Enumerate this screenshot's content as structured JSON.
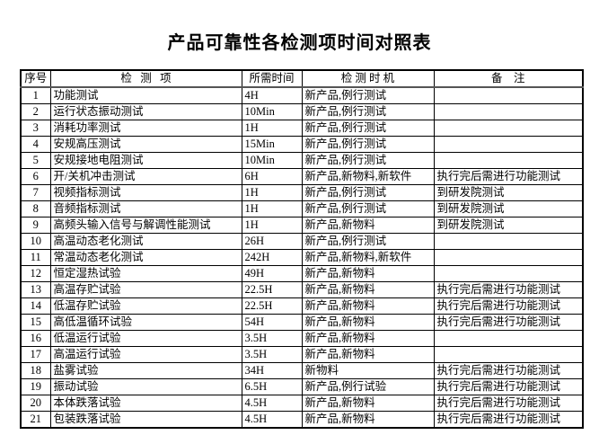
{
  "title": "产品可靠性各检测项时间对照表",
  "table": {
    "headers": {
      "no": "序号",
      "item": "检   测   项",
      "time": "所需时间",
      "timing": "检 测 时 机",
      "note": "备    注"
    },
    "rows": [
      {
        "no": "1",
        "item": "功能测试",
        "time": "4H",
        "timing": "新产品,例行测试",
        "note": ""
      },
      {
        "no": "2",
        "item": "运行状态振动测试",
        "time": "10Min",
        "timing": "新产品,例行测试",
        "note": ""
      },
      {
        "no": "3",
        "item": "消耗功率测试",
        "time": "1H",
        "timing": "新产品,例行测试",
        "note": ""
      },
      {
        "no": "4",
        "item": "安规高压测试",
        "time": "15Min",
        "timing": "新产品,例行测试",
        "note": ""
      },
      {
        "no": "5",
        "item": "安规接地电阻测试",
        "time": "10Min",
        "timing": "新产品,例行测试",
        "note": ""
      },
      {
        "no": "6",
        "item": "开/关机冲击测试",
        "time": "6H",
        "timing": "新产品,新物料,新软件",
        "note": "执行完后需进行功能测试"
      },
      {
        "no": "7",
        "item": "视频指标测试",
        "time": "1H",
        "timing": "新产品,例行测试",
        "note": "到研发院测试"
      },
      {
        "no": "8",
        "item": "音频指标测试",
        "time": "1H",
        "timing": "新产品,例行测试",
        "note": "到研发院测试"
      },
      {
        "no": "9",
        "item": "高频头输入信号与解调性能测试",
        "time": "1H",
        "timing": "新产品,新物料",
        "note": "到研发院测试"
      },
      {
        "no": "10",
        "item": "高温动态老化测试",
        "time": "26H",
        "timing": "新产品,例行测试",
        "note": ""
      },
      {
        "no": "11",
        "item": "常温动态老化测试",
        "time": "242H",
        "timing": "新产品,新物料,新软件",
        "note": ""
      },
      {
        "no": "12",
        "item": "恒定湿热试验",
        "time": "49H",
        "timing": "新产品,新物料",
        "note": ""
      },
      {
        "no": "13",
        "item": "高温存贮试验",
        "time": "22.5H",
        "timing": "新产品,新物料",
        "note": "执行完后需进行功能测试"
      },
      {
        "no": "14",
        "item": "低温存贮试验",
        "time": "22.5H",
        "timing": "新产品,新物料",
        "note": "执行完后需进行功能测试"
      },
      {
        "no": "15",
        "item": "高低温循环试验",
        "time": "54H",
        "timing": "新产品,新物料",
        "note": "执行完后需进行功能测试"
      },
      {
        "no": "16",
        "item": "低温运行试验",
        "time": "3.5H",
        "timing": "新产品,新物料",
        "note": ""
      },
      {
        "no": "17",
        "item": "高温运行试验",
        "time": "3.5H",
        "timing": "新产品,新物料",
        "note": ""
      },
      {
        "no": "18",
        "item": "盐雾试验",
        "time": "34H",
        "timing": "新物料",
        "note": "执行完后需进行功能测试"
      },
      {
        "no": "19",
        "item": "振动试验",
        "time": "6.5H",
        "timing": "新产品,例行试验",
        "note": "执行完后需进行功能测试"
      },
      {
        "no": "20",
        "item": "本体跌落试验",
        "time": "4.5H",
        "timing": "新产品,新物料",
        "note": "执行完后需进行功能测试"
      },
      {
        "no": "21",
        "item": "包装跌落试验",
        "time": "4.5H",
        "timing": "新产品,新物料",
        "note": "执行完后需进行功能测试"
      }
    ]
  }
}
